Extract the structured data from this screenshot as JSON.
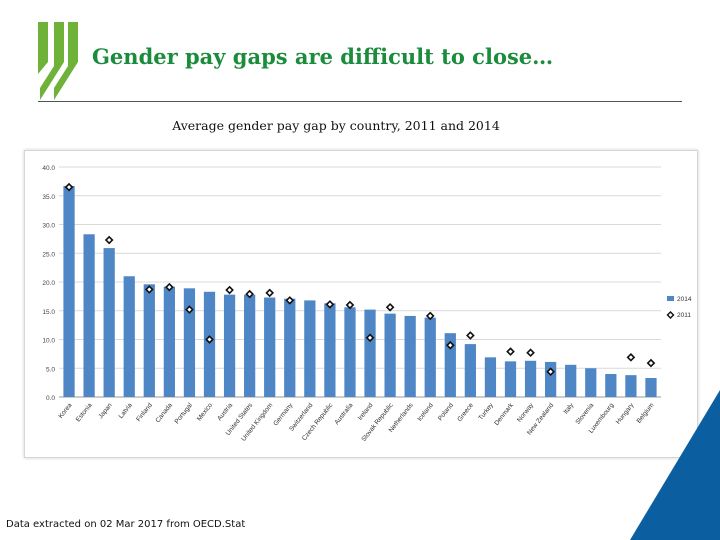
{
  "header": {
    "title": "Gender pay gaps are difficult to close…",
    "subtitle": "Average gender pay gap by country, 2011 and 2014"
  },
  "footer": {
    "source": "Data extracted on 02 Mar 2017 from OECD.Stat"
  },
  "colors": {
    "brand_green": "#6fb23a",
    "title_green": "#1a8c3c",
    "corner_blue": "#0b5fa0",
    "bar_blue": "#4f86c6",
    "marker_stroke": "#111111"
  },
  "chart_data": {
    "type": "bar",
    "categories": [
      "Korea",
      "Estonia",
      "Japan",
      "Latvia",
      "Finland",
      "Canada",
      "Portugal",
      "Mexico",
      "Austria",
      "United States",
      "United Kingdom",
      "Germany",
      "Switzerland",
      "Czech Republic",
      "Australia",
      "Ireland",
      "Slovak Republic",
      "Netherlands",
      "Iceland",
      "Poland",
      "Greece",
      "Turkey",
      "Denmark",
      "Norway",
      "New Zealand",
      "Italy",
      "Slovenia",
      "Luxembourg",
      "Hungary",
      "Belgium"
    ],
    "series": [
      {
        "name": "2014",
        "kind": "bar",
        "values": [
          36.7,
          28.3,
          25.9,
          21.0,
          19.6,
          19.2,
          18.9,
          18.3,
          17.8,
          17.8,
          17.3,
          17.1,
          16.8,
          16.3,
          15.6,
          15.2,
          14.5,
          14.1,
          13.8,
          11.1,
          9.2,
          6.9,
          6.2,
          6.3,
          6.1,
          5.6,
          5.0,
          4.0,
          3.8,
          3.3
        ]
      },
      {
        "name": "2011",
        "kind": "marker",
        "values": [
          36.5,
          null,
          27.3,
          null,
          18.7,
          19.1,
          15.2,
          10.0,
          18.6,
          17.9,
          18.1,
          16.8,
          null,
          16.1,
          16.0,
          10.3,
          15.6,
          null,
          14.1,
          9.0,
          10.7,
          null,
          7.9,
          7.7,
          4.4,
          null,
          null,
          null,
          6.9,
          5.9
        ]
      }
    ],
    "ylim": [
      0,
      40
    ],
    "yticks": [
      "0.0",
      "5.0",
      "10.0",
      "15.0",
      "20.0",
      "25.0",
      "30.0",
      "35.0",
      "40.0"
    ],
    "grid": true,
    "legend_position": "right"
  }
}
